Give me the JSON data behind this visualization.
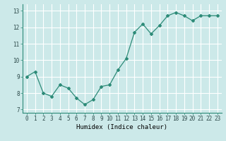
{
  "x": [
    0,
    1,
    2,
    3,
    4,
    5,
    6,
    7,
    8,
    9,
    10,
    11,
    12,
    13,
    14,
    15,
    16,
    17,
    18,
    19,
    20,
    21,
    22,
    23
  ],
  "y": [
    9.0,
    9.3,
    8.0,
    7.8,
    8.5,
    8.3,
    7.7,
    7.3,
    7.6,
    8.4,
    8.5,
    9.4,
    10.1,
    11.7,
    12.2,
    11.6,
    12.1,
    12.7,
    12.9,
    12.7,
    12.4,
    12.7,
    12.7,
    12.7
  ],
  "line_color": "#2d8b78",
  "marker": "D",
  "marker_size": 2.0,
  "line_width": 0.9,
  "bg_color": "#cce9e9",
  "grid_color": "#ffffff",
  "xlabel": "Humidex (Indice chaleur)",
  "xlabel_fontsize": 6.5,
  "xlabel_fontname": "monospace",
  "tick_fontname": "monospace",
  "tick_fontsize": 5.5,
  "ylim": [
    6.8,
    13.4
  ],
  "xlim": [
    -0.5,
    23.5
  ],
  "yticks": [
    7,
    8,
    9,
    10,
    11,
    12,
    13
  ],
  "xticks": [
    0,
    1,
    2,
    3,
    4,
    5,
    6,
    7,
    8,
    9,
    10,
    11,
    12,
    13,
    14,
    15,
    16,
    17,
    18,
    19,
    20,
    21,
    22,
    23
  ]
}
